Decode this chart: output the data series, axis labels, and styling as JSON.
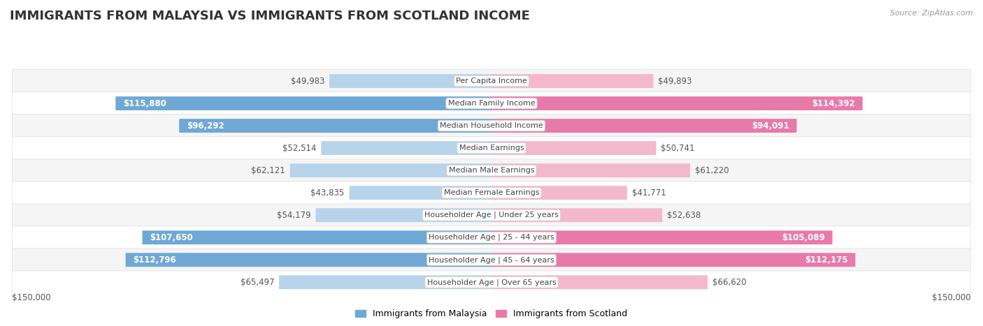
{
  "title": "IMMIGRANTS FROM MALAYSIA VS IMMIGRANTS FROM SCOTLAND INCOME",
  "source": "Source: ZipAtlas.com",
  "categories": [
    "Per Capita Income",
    "Median Family Income",
    "Median Household Income",
    "Median Earnings",
    "Median Male Earnings",
    "Median Female Earnings",
    "Householder Age | Under 25 years",
    "Householder Age | 25 - 44 years",
    "Householder Age | 45 - 64 years",
    "Householder Age | Over 65 years"
  ],
  "malaysia_values": [
    49983,
    115880,
    96292,
    52514,
    62121,
    43835,
    54179,
    107650,
    112796,
    65497
  ],
  "scotland_values": [
    49893,
    114392,
    94091,
    50741,
    61220,
    41771,
    52638,
    105089,
    112175,
    66620
  ],
  "malaysia_labels": [
    "$49,983",
    "$115,880",
    "$96,292",
    "$52,514",
    "$62,121",
    "$43,835",
    "$54,179",
    "$107,650",
    "$112,796",
    "$65,497"
  ],
  "scotland_labels": [
    "$49,893",
    "$114,392",
    "$94,091",
    "$50,741",
    "$61,220",
    "$41,771",
    "$52,638",
    "$105,089",
    "$112,175",
    "$66,620"
  ],
  "malaysia_color_high": "#6fa8d4",
  "malaysia_color_low": "#b8d4ea",
  "scotland_color_high": "#e87aaa",
  "scotland_color_low": "#f4b8cc",
  "malaysia_label_color_threshold": 80000,
  "bar_bg_color": "#f0f0f0",
  "max_value": 150000,
  "legend_malaysia": "Immigrants from Malaysia",
  "legend_scotland": "Immigrants from Scotland",
  "background_color": "#ffffff",
  "row_bg_even": "#f5f5f5",
  "row_bg_odd": "#ffffff",
  "title_fontsize": 13,
  "label_fontsize": 8.5,
  "category_fontsize": 8,
  "axis_label_fontsize": 8.5,
  "source_fontsize": 8
}
